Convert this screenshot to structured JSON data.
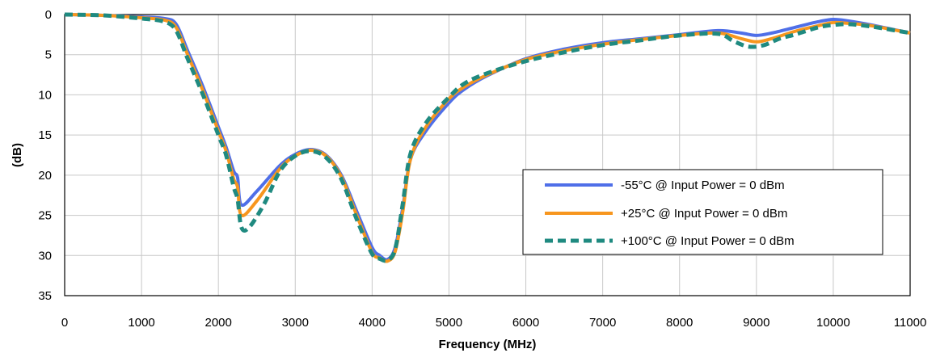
{
  "chart_data": {
    "type": "line",
    "title": "",
    "xlabel": "Frequency (MHz)",
    "ylabel": "(dB)",
    "xlim": [
      0,
      11000
    ],
    "ylim": [
      0,
      35
    ],
    "y_reversed": true,
    "xticks": [
      0,
      1000,
      2000,
      3000,
      4000,
      5000,
      6000,
      7000,
      8000,
      9000,
      10000,
      11000
    ],
    "yticks": [
      0,
      5,
      10,
      15,
      20,
      25,
      30,
      35
    ],
    "xtick_labels": [
      "0",
      "1000",
      "2000",
      "3000",
      "4000",
      "5000",
      "6000",
      "7000",
      "8000",
      "9000",
      "10000",
      "11000"
    ],
    "ytick_labels": [
      "0",
      "5",
      "10",
      "15",
      "20",
      "25",
      "30",
      "35"
    ],
    "grid": true,
    "legend_position": "bottom-right",
    "series": [
      {
        "name": "-55°C @  Input Power = 0 dBm",
        "color": "#4F6FE8",
        "style": "solid",
        "x": [
          0,
          500,
          1000,
          1300,
          1450,
          1600,
          1800,
          2000,
          2100,
          2200,
          2250,
          2300,
          2500,
          2800,
          3000,
          3200,
          3400,
          3600,
          3800,
          4000,
          4100,
          4200,
          4300,
          4400,
          4500,
          4700,
          5000,
          5200,
          5500,
          6000,
          6500,
          7000,
          7500,
          8000,
          8500,
          8800,
          9000,
          9200,
          9500,
          9800,
          10000,
          10200,
          10500,
          11000
        ],
        "y": [
          0.0,
          0.1,
          0.3,
          0.5,
          1.2,
          4.5,
          9.0,
          14.0,
          16.5,
          19.5,
          20.3,
          23.7,
          22.0,
          18.8,
          17.4,
          16.8,
          17.5,
          20.0,
          24.5,
          29.0,
          30.0,
          30.5,
          29.0,
          24.0,
          18.0,
          14.5,
          11.0,
          9.3,
          7.6,
          5.5,
          4.3,
          3.5,
          3.0,
          2.5,
          2.0,
          2.3,
          2.6,
          2.3,
          1.6,
          0.9,
          0.6,
          0.8,
          1.3,
          2.3
        ]
      },
      {
        "name": "+25°C @  Input Power = 0 dBm",
        "color": "#F7961E",
        "style": "solid",
        "x": [
          0,
          500,
          1000,
          1300,
          1450,
          1600,
          1800,
          2000,
          2100,
          2200,
          2250,
          2300,
          2500,
          2800,
          3000,
          3200,
          3400,
          3600,
          3800,
          4000,
          4100,
          4200,
          4300,
          4400,
          4500,
          4700,
          5000,
          5200,
          5500,
          6000,
          6500,
          7000,
          7500,
          8000,
          8500,
          8800,
          9000,
          9200,
          9500,
          9800,
          10000,
          10200,
          10500,
          11000
        ],
        "y": [
          0.0,
          0.1,
          0.4,
          0.7,
          1.6,
          5.0,
          9.5,
          14.5,
          17.0,
          20.5,
          21.5,
          25.0,
          23.2,
          19.2,
          17.6,
          16.9,
          17.6,
          20.2,
          25.0,
          29.6,
          30.3,
          30.7,
          29.5,
          24.5,
          18.0,
          14.0,
          10.5,
          9.0,
          7.5,
          5.6,
          4.5,
          3.7,
          3.1,
          2.6,
          2.3,
          3.0,
          3.4,
          3.0,
          2.1,
          1.4,
          1.0,
          1.1,
          1.4,
          2.3
        ]
      },
      {
        "name": "+100°C @  Input Power = 0 dBm",
        "color": "#1F8A80",
        "style": "dashed",
        "x": [
          0,
          500,
          1000,
          1300,
          1450,
          1600,
          1800,
          2000,
          2100,
          2200,
          2250,
          2300,
          2400,
          2600,
          2800,
          3000,
          3200,
          3400,
          3600,
          3800,
          4000,
          4100,
          4200,
          4300,
          4400,
          4500,
          4700,
          5000,
          5200,
          5500,
          6000,
          6500,
          7000,
          7500,
          8000,
          8500,
          8700,
          8900,
          9100,
          9300,
          9500,
          9800,
          10000,
          10200,
          10500,
          11000
        ],
        "y": [
          0.0,
          0.1,
          0.5,
          0.9,
          2.0,
          5.5,
          10.0,
          15.0,
          17.5,
          21.5,
          23.0,
          26.5,
          26.5,
          23.5,
          19.5,
          17.6,
          17.0,
          17.8,
          20.5,
          25.5,
          29.8,
          30.4,
          30.6,
          29.2,
          23.5,
          17.3,
          13.5,
          10.3,
          8.6,
          7.3,
          5.8,
          4.7,
          3.8,
          3.2,
          2.6,
          2.4,
          3.3,
          4.0,
          3.8,
          3.0,
          2.5,
          1.6,
          1.3,
          1.2,
          1.5,
          2.3
        ]
      }
    ]
  }
}
